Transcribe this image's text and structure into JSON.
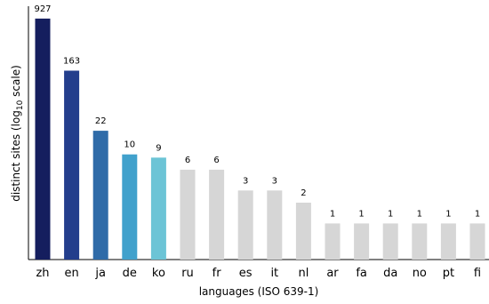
{
  "chart_data": {
    "type": "bar",
    "categories": [
      "zh",
      "en",
      "ja",
      "de",
      "ko",
      "ru",
      "fr",
      "es",
      "it",
      "nl",
      "ar",
      "fa",
      "da",
      "no",
      "pt",
      "fi"
    ],
    "values": [
      927,
      163,
      22,
      10,
      9,
      6,
      6,
      3,
      3,
      2,
      1,
      1,
      1,
      1,
      1,
      1
    ],
    "value_labels": [
      "927",
      "163",
      "22",
      "10",
      "9",
      "6",
      "6",
      "3",
      "3",
      "2",
      "1",
      "1",
      "1",
      "1",
      "1",
      "1"
    ],
    "colors": [
      "#151e5e",
      "#233e8c",
      "#2f6ba8",
      "#41a1cc",
      "#6cc4d6",
      "#d6d6d6",
      "#d6d6d6",
      "#d6d6d6",
      "#d6d6d6",
      "#d6d6d6",
      "#d6d6d6",
      "#d6d6d6",
      "#d6d6d6",
      "#d6d6d6",
      "#d6d6d6",
      "#d6d6d6"
    ],
    "title": "",
    "xlabel": "languages (ISO 639-1)",
    "ylabel_prefix": "distinct sites (log",
    "ylabel_sub": "10",
    "ylabel_suffix": " scale)",
    "yscale": "log",
    "ylim": [
      0.3,
      1400
    ],
    "grid": false,
    "legend": "none"
  }
}
